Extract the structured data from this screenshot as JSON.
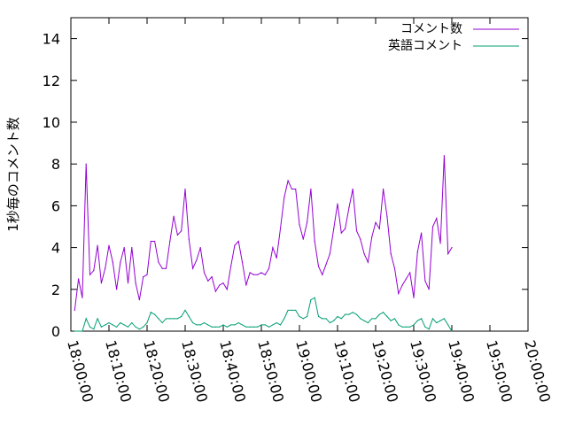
{
  "chart_data": {
    "type": "line",
    "title": "",
    "xlabel": "",
    "ylabel": "1秒毎のコメント数",
    "ylim": [
      0,
      15
    ],
    "xlim": [
      "18:00:00",
      "20:00:00"
    ],
    "x_ticks": [
      "18:00:00",
      "18:10:00",
      "18:20:00",
      "18:30:00",
      "18:40:00",
      "18:50:00",
      "19:00:00",
      "19:10:00",
      "19:20:00",
      "19:30:00",
      "19:40:00",
      "19:50:00",
      "20:00:00"
    ],
    "y_ticks": [
      "0",
      "2",
      "4",
      "6",
      "8",
      "10",
      "12",
      "14"
    ],
    "grid": false,
    "legend_position": "top-right",
    "x_start": "18:00:00",
    "x_step_seconds": 60,
    "series": [
      {
        "name": "コメント数",
        "color": "#9400d3",
        "x_start": "18:01:00",
        "values": [
          1.0,
          2.5,
          1.6,
          8.0,
          2.7,
          2.9,
          4.1,
          2.3,
          3.0,
          4.1,
          3.3,
          2.0,
          3.3,
          4.0,
          2.3,
          4.0,
          2.3,
          1.5,
          2.6,
          2.7,
          4.3,
          4.3,
          3.3,
          3.0,
          3.0,
          4.3,
          5.5,
          4.6,
          4.8,
          6.8,
          4.4,
          3.0,
          3.4,
          4.0,
          2.8,
          2.4,
          2.6,
          1.9,
          2.2,
          2.3,
          2.0,
          3.1,
          4.1,
          4.3,
          3.3,
          2.2,
          2.8,
          2.7,
          2.7,
          2.8,
          2.7,
          3.0,
          4.0,
          3.5,
          4.9,
          6.4,
          7.2,
          6.8,
          6.8,
          5.1,
          4.4,
          5.2,
          6.8,
          4.3,
          3.1,
          2.7,
          3.2,
          3.7,
          4.9,
          6.1,
          4.7,
          4.9,
          5.9,
          6.8,
          4.8,
          4.4,
          3.7,
          3.3,
          4.5,
          5.2,
          4.9,
          6.8,
          5.5,
          3.7,
          3.0,
          1.8,
          2.2,
          2.5,
          2.8,
          1.6,
          3.8,
          4.7,
          2.4,
          2.0,
          5.0,
          5.4,
          4.2,
          8.4,
          3.7,
          4.0
        ]
      },
      {
        "name": "英語コメント",
        "color": "#009e73",
        "x_start": "18:01:00",
        "values": [
          0.0,
          0.0,
          0.0,
          0.6,
          0.2,
          0.1,
          0.6,
          0.2,
          0.3,
          0.4,
          0.3,
          0.2,
          0.4,
          0.3,
          0.2,
          0.4,
          0.2,
          0.1,
          0.2,
          0.4,
          0.9,
          0.8,
          0.6,
          0.4,
          0.6,
          0.6,
          0.6,
          0.6,
          0.7,
          1.0,
          0.7,
          0.4,
          0.3,
          0.3,
          0.4,
          0.3,
          0.2,
          0.2,
          0.2,
          0.3,
          0.2,
          0.3,
          0.3,
          0.4,
          0.3,
          0.2,
          0.2,
          0.2,
          0.2,
          0.3,
          0.3,
          0.2,
          0.3,
          0.4,
          0.3,
          0.6,
          1.0,
          1.0,
          1.0,
          0.7,
          0.6,
          0.7,
          1.5,
          1.6,
          0.7,
          0.6,
          0.6,
          0.4,
          0.5,
          0.7,
          0.6,
          0.8,
          0.8,
          0.9,
          0.8,
          0.6,
          0.5,
          0.4,
          0.6,
          0.6,
          0.8,
          0.9,
          0.7,
          0.5,
          0.6,
          0.3,
          0.2,
          0.2,
          0.2,
          0.3,
          0.5,
          0.6,
          0.2,
          0.1,
          0.6,
          0.4,
          0.5,
          0.6,
          0.3,
          0.0
        ]
      }
    ]
  }
}
